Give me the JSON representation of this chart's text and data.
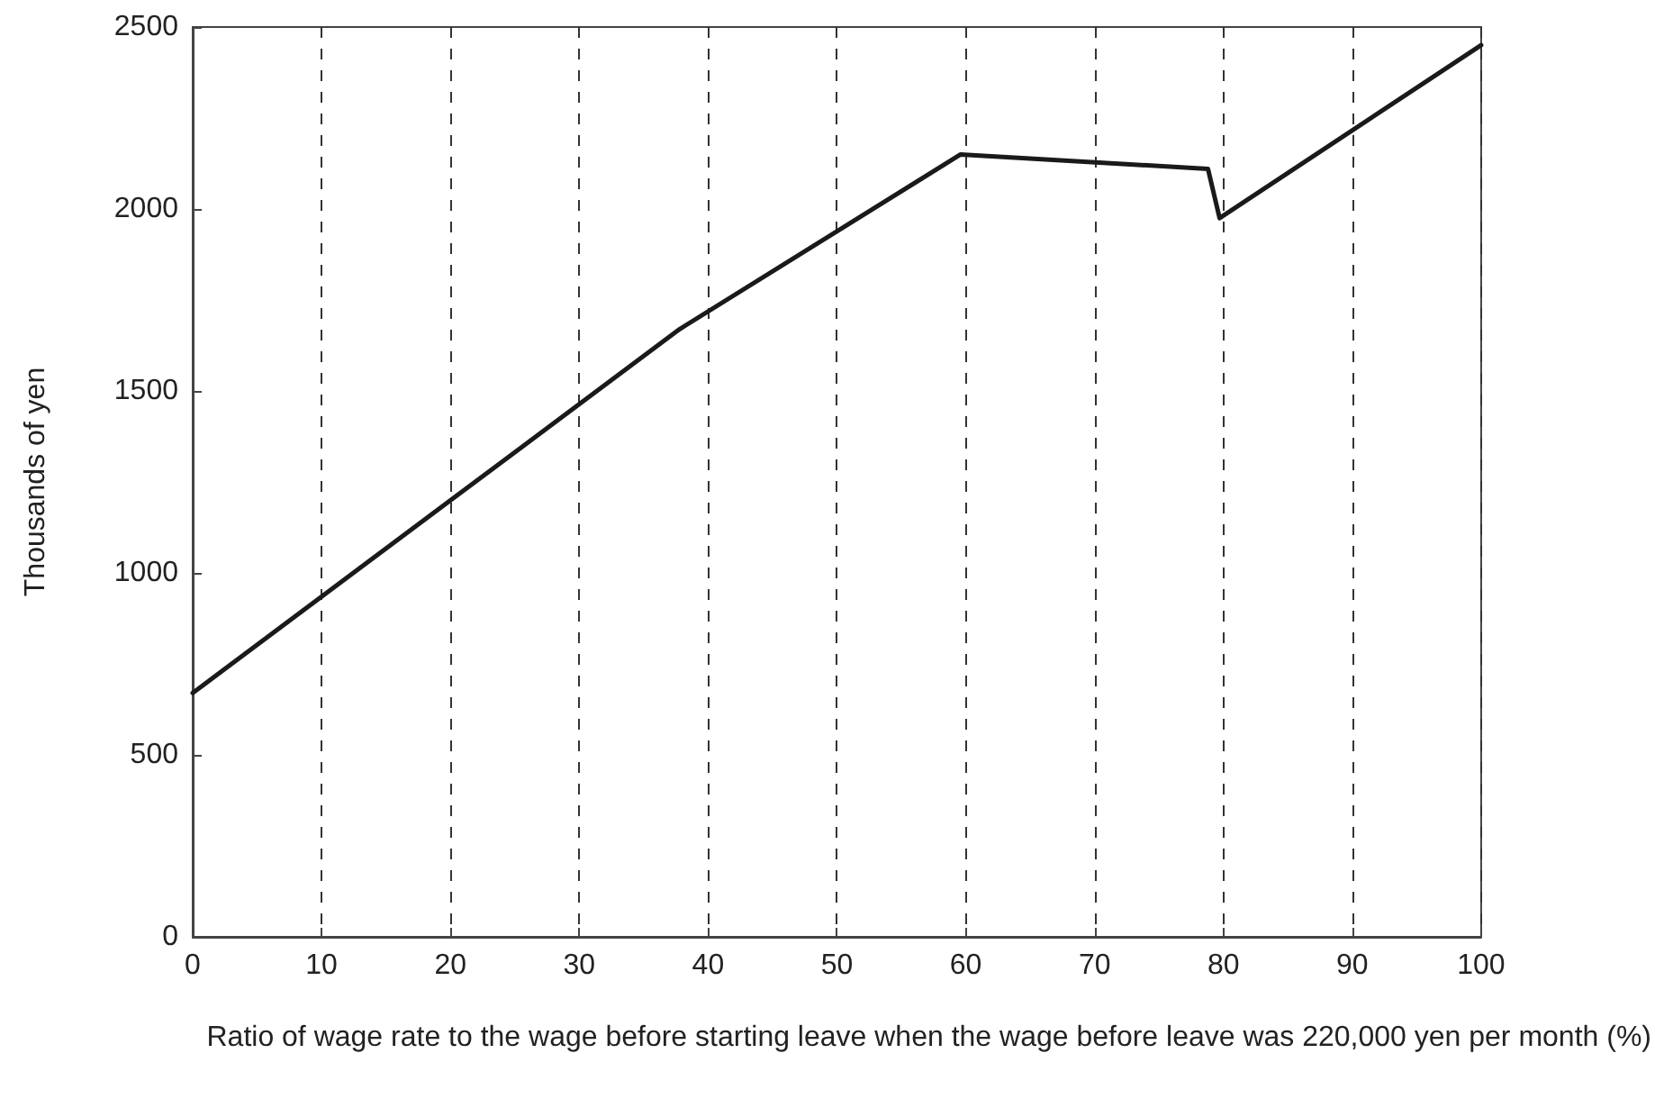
{
  "chart_data": {
    "type": "line",
    "xlabel": "Ratio of wage rate to the wage before starting leave when the wage before leave was 220,000 yen per month (%)",
    "ylabel": "Thousands of yen",
    "series": [
      {
        "color": "#1a1a1a",
        "x": [
          0,
          37.8,
          59.6,
          78.8,
          79.7,
          100
        ],
        "values": [
          670,
          1670,
          2150,
          2110,
          1975,
          2450
        ]
      }
    ],
    "xlim": [
      0,
      100
    ],
    "xticks": [
      0,
      10,
      20,
      30,
      40,
      50,
      60,
      70,
      80,
      90,
      100
    ],
    "ylim": [
      0,
      2500
    ],
    "yticks": [
      0,
      500,
      1000,
      1500,
      2000,
      2500
    ],
    "grid": "x",
    "marker": "none",
    "line_style": "solid"
  }
}
